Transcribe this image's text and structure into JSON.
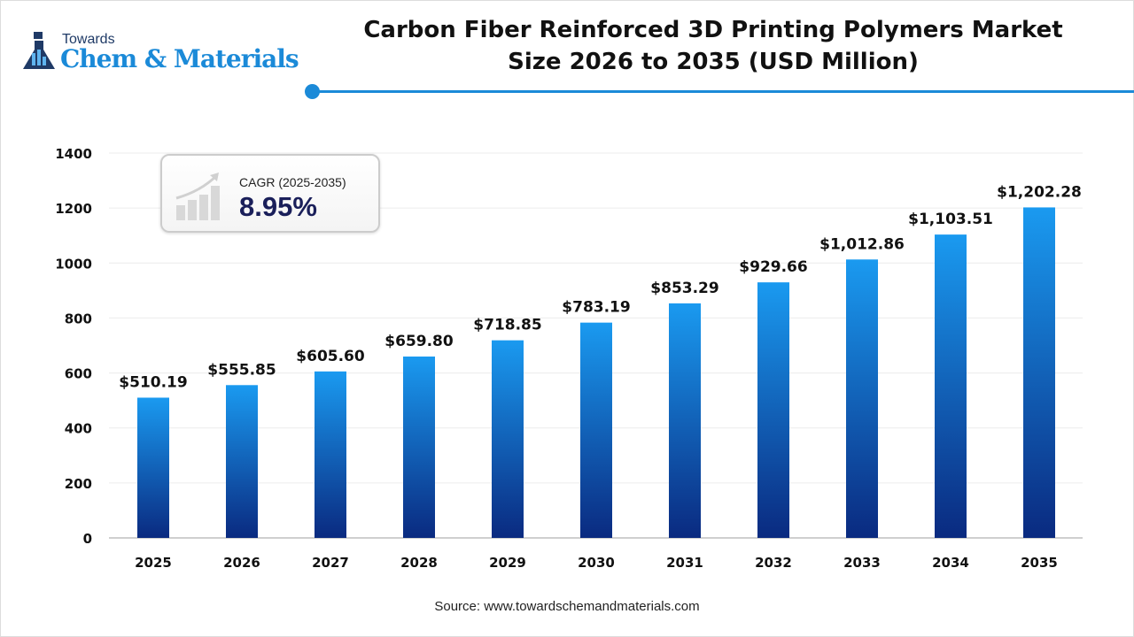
{
  "logo": {
    "line1": "Towards",
    "line2": "Chem & Materials"
  },
  "title_lines": [
    "Carbon Fiber Reinforced 3D Printing Polymers Market",
    "Size 2026 to 2035 (USD Million)"
  ],
  "cagr": {
    "label": "CAGR (2025-2035)",
    "value": "8.95%",
    "icon": "growth-chart-icon"
  },
  "source": "Source: www.towardschemandmaterials.com",
  "colors": {
    "accent": "#1b8ad8",
    "bar_top": "#1a9af0",
    "bar_bottom": "#0a2a80"
  },
  "chart_data": {
    "type": "bar",
    "categories": [
      "2025",
      "2026",
      "2027",
      "2028",
      "2029",
      "2030",
      "2031",
      "2032",
      "2033",
      "2034",
      "2035"
    ],
    "values": [
      510.19,
      555.85,
      605.6,
      659.8,
      718.85,
      783.19,
      853.29,
      929.66,
      1012.86,
      1103.51,
      1202.28
    ],
    "data_labels": [
      "$510.19",
      "$555.85",
      "$605.60",
      "$659.80",
      "$718.85",
      "$783.19",
      "$853.29",
      "$929.66",
      "$1,012.86",
      "$1,103.51",
      "$1,202.28"
    ],
    "yticks": [
      0,
      200,
      400,
      600,
      800,
      1000,
      1200,
      1400
    ],
    "ylim": [
      0,
      1400
    ],
    "grid": true,
    "title": "Carbon Fiber Reinforced 3D Printing Polymers Market Size 2026 to 2035 (USD Million)"
  }
}
